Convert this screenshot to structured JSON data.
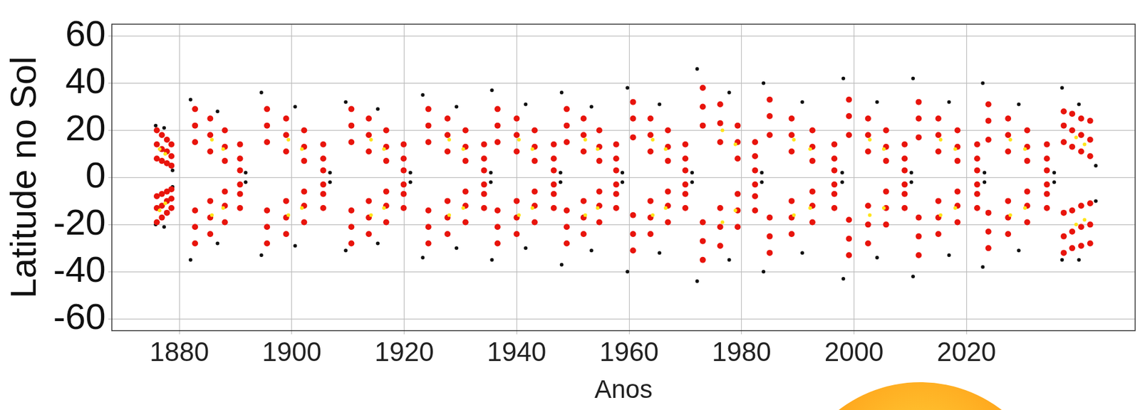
{
  "chart_data": {
    "type": "scatter",
    "xlabel": "Anos",
    "ylabel": "Latitude no Sol",
    "xlim": [
      1868,
      2050
    ],
    "ylim": [
      -65,
      65
    ],
    "xticks": [
      1880,
      1900,
      1920,
      1940,
      1960,
      1980,
      2000,
      2020
    ],
    "yticks": [
      -60,
      -40,
      -20,
      0,
      20,
      40,
      60
    ],
    "grid": true,
    "marker": "circle",
    "series": [
      {
        "color": "#111111",
        "x": [
          1875.8,
          1878.8,
          1875.8,
          1878.8,
          1877.3,
          1877.3,
          1882,
          1891.8,
          1882,
          1891.8,
          1886.8,
          1886.8,
          1894.6,
          1906.8,
          1894.6,
          1906.8,
          1900.6,
          1900.6,
          1909.6,
          1921.1,
          1909.6,
          1921.1,
          1915.3,
          1915.3,
          1923.3,
          1935.4,
          1923.3,
          1935.4,
          1929.3,
          1929.3,
          1935.6,
          1947.8,
          1935.6,
          1947.8,
          1941.6,
          1941.6,
          1948,
          1958.8,
          1948,
          1958.8,
          1953.3,
          1953.3,
          1959.7,
          1971.2,
          1959.7,
          1971.2,
          1965.4,
          1965.4,
          1972.1,
          1983.6,
          1972.1,
          1983.6,
          1977.8,
          1977.8,
          1983.9,
          1997.9,
          1983.9,
          1997.9,
          1990.8,
          1990.8,
          1998.1,
          2010.2,
          1998.1,
          2010.2,
          2004.1,
          2004.1,
          2010.5,
          2023.2,
          2010.5,
          2023.2,
          2016.9,
          2016.9,
          2022.9,
          2035.6,
          2022.9,
          2035.6,
          2029.3,
          2029.3,
          2037,
          2043,
          2037,
          2043,
          2040,
          2040
        ],
        "values": [
          22,
          3,
          -20,
          -4,
          21,
          -21,
          33,
          2,
          -35,
          -2,
          28,
          -28,
          36,
          2,
          -33,
          -2,
          30,
          -29,
          32,
          2,
          -31,
          -2,
          29,
          -28,
          35,
          2,
          -34,
          -2,
          30,
          -30,
          37,
          2,
          -35,
          -2,
          31,
          -30,
          36,
          2,
          -37,
          -2,
          30,
          -31,
          38,
          2,
          -40,
          -2,
          31,
          -32,
          46,
          2,
          -44,
          -2,
          36,
          -35,
          40,
          2,
          -40,
          -2,
          32,
          -32,
          42,
          2,
          -43,
          -2,
          32,
          -34,
          42,
          2,
          -42,
          -2,
          32,
          -33,
          40,
          2,
          -38,
          -2,
          31,
          -31,
          38,
          5,
          -35,
          -10,
          31,
          -35
        ]
      },
      {
        "color": "#e8140c",
        "x": [
          1876,
          1876,
          1876,
          1876.9,
          1876.9,
          1876.9,
          1877.8,
          1877.8,
          1877.8,
          1878.6,
          1878.6,
          1878.6,
          1876,
          1876,
          1876,
          1876.9,
          1876.9,
          1876.9,
          1877.8,
          1877.8,
          1877.8,
          1878.6,
          1878.6,
          1878.6,
          1882.8,
          1882.8,
          1882.8,
          1885.5,
          1885.5,
          1885.5,
          1888.1,
          1888.1,
          1888.1,
          1890.8,
          1890.8,
          1890.8,
          1882.8,
          1882.8,
          1882.8,
          1885.5,
          1885.5,
          1885.5,
          1888.1,
          1888.1,
          1888.1,
          1890.8,
          1890.8,
          1890.8,
          1895.6,
          1895.6,
          1895.6,
          1899,
          1899,
          1899,
          1902.2,
          1902.2,
          1902.2,
          1905.6,
          1905.6,
          1905.6,
          1895.6,
          1895.6,
          1895.6,
          1899,
          1899,
          1899,
          1902.2,
          1902.2,
          1902.2,
          1905.6,
          1905.6,
          1905.6,
          1910.6,
          1910.6,
          1910.6,
          1913.7,
          1913.7,
          1913.7,
          1916.8,
          1916.8,
          1916.8,
          1919.9,
          1919.9,
          1919.9,
          1910.6,
          1910.6,
          1910.6,
          1913.7,
          1913.7,
          1913.7,
          1916.8,
          1916.8,
          1916.8,
          1919.9,
          1919.9,
          1919.9,
          1924.3,
          1924.3,
          1924.3,
          1927.7,
          1927.7,
          1927.7,
          1930.9,
          1930.9,
          1930.9,
          1934.2,
          1934.2,
          1934.2,
          1924.3,
          1924.3,
          1924.3,
          1927.7,
          1927.7,
          1927.7,
          1930.9,
          1930.9,
          1930.9,
          1934.2,
          1934.2,
          1934.2,
          1936.6,
          1936.6,
          1936.6,
          1940,
          1940,
          1940,
          1943.2,
          1943.2,
          1943.2,
          1946.6,
          1946.6,
          1946.6,
          1936.6,
          1936.6,
          1936.6,
          1940,
          1940,
          1940,
          1943.2,
          1943.2,
          1943.2,
          1946.6,
          1946.6,
          1946.6,
          1948.9,
          1948.9,
          1948.9,
          1951.9,
          1951.9,
          1951.9,
          1954.7,
          1954.7,
          1954.7,
          1957.7,
          1957.7,
          1957.7,
          1948.9,
          1948.9,
          1948.9,
          1951.9,
          1951.9,
          1951.9,
          1954.7,
          1954.7,
          1954.7,
          1957.7,
          1957.7,
          1957.7,
          1960.7,
          1960.7,
          1960.7,
          1963.8,
          1963.8,
          1963.8,
          1966.9,
          1966.9,
          1966.9,
          1970,
          1970,
          1970,
          1960.7,
          1960.7,
          1960.7,
          1963.8,
          1963.8,
          1963.8,
          1966.9,
          1966.9,
          1966.9,
          1970,
          1970,
          1970,
          1973.1,
          1973.1,
          1973.1,
          1976.2,
          1976.2,
          1976.2,
          1979.3,
          1979.3,
          1979.3,
          1982.4,
          1982.4,
          1982.4,
          1973.1,
          1973.1,
          1973.1,
          1976.2,
          1976.2,
          1976.2,
          1979.3,
          1979.3,
          1979.3,
          1982.4,
          1982.4,
          1982.4,
          1985,
          1985,
          1985,
          1988.9,
          1988.9,
          1988.9,
          1992.6,
          1992.6,
          1992.6,
          1996.5,
          1996.5,
          1996.5,
          1985,
          1985,
          1985,
          1988.9,
          1988.9,
          1988.9,
          1992.6,
          1992.6,
          1992.6,
          1996.5,
          1996.5,
          1996.5,
          1999.1,
          1999.1,
          1999.1,
          2002.5,
          2002.5,
          2002.5,
          2005.7,
          2005.7,
          2005.7,
          2009,
          2009,
          2009,
          1999.1,
          1999.1,
          1999.1,
          2002.5,
          2002.5,
          2002.5,
          2005.7,
          2005.7,
          2005.7,
          2009,
          2009,
          2009,
          2011.5,
          2011.5,
          2011.5,
          2015,
          2015,
          2015,
          2018.4,
          2018.4,
          2018.4,
          2021.9,
          2021.9,
          2021.9,
          2011.5,
          2011.5,
          2011.5,
          2015,
          2015,
          2015,
          2018.4,
          2018.4,
          2018.4,
          2021.9,
          2021.9,
          2021.9,
          2023.9,
          2023.9,
          2023.9,
          2027.4,
          2027.4,
          2027.4,
          2030.8,
          2030.8,
          2030.8,
          2034.3,
          2034.3,
          2034.3,
          2023.9,
          2023.9,
          2023.9,
          2027.4,
          2027.4,
          2027.4,
          2030.8,
          2030.8,
          2030.8,
          2034.3,
          2034.3,
          2034.3,
          2037.3,
          2037.3,
          2037.3,
          2038.8,
          2038.8,
          2038.8,
          2040.4,
          2040.4,
          2040.4,
          2042,
          2042,
          2042,
          2037.3,
          2037.3,
          2037.3,
          2038.8,
          2038.8,
          2038.8,
          2040.4,
          2040.4,
          2040.4,
          2042,
          2042,
          2042
        ],
        "values": [
          20,
          14,
          8,
          18,
          12,
          7,
          16,
          11,
          6,
          14,
          9,
          5,
          -19,
          -13,
          -8,
          -17,
          -12,
          -7,
          -15,
          -10,
          -6,
          -13,
          -9,
          -5,
          29,
          22,
          15,
          25,
          18,
          11,
          20,
          13,
          7,
          14,
          8,
          3,
          -28,
          -21,
          -14,
          -24,
          -17,
          -10,
          -19,
          -12,
          -6,
          -13,
          -7,
          -3,
          29,
          22,
          15,
          25,
          18,
          11,
          20,
          13,
          7,
          14,
          8,
          3,
          -28,
          -21,
          -14,
          -24,
          -17,
          -10,
          -19,
          -12,
          -6,
          -13,
          -7,
          -3,
          29,
          22,
          15,
          25,
          18,
          11,
          20,
          13,
          7,
          14,
          8,
          3,
          -28,
          -21,
          -14,
          -24,
          -17,
          -10,
          -19,
          -12,
          -6,
          -13,
          -7,
          -3,
          29,
          22,
          15,
          25,
          18,
          11,
          20,
          13,
          7,
          14,
          8,
          3,
          -28,
          -21,
          -14,
          -24,
          -17,
          -10,
          -19,
          -12,
          -6,
          -13,
          -7,
          -3,
          29,
          22,
          15,
          25,
          18,
          11,
          20,
          13,
          7,
          14,
          8,
          3,
          -28,
          -21,
          -14,
          -24,
          -17,
          -10,
          -19,
          -12,
          -6,
          -13,
          -7,
          -3,
          29,
          22,
          15,
          25,
          18,
          11,
          20,
          13,
          7,
          14,
          8,
          3,
          -28,
          -21,
          -14,
          -24,
          -17,
          -10,
          -19,
          -12,
          -6,
          -13,
          -7,
          -3,
          32,
          25,
          17,
          25,
          18,
          11,
          20,
          13,
          7,
          14,
          8,
          3,
          -31,
          -24,
          -16,
          -24,
          -17,
          -10,
          -19,
          -12,
          -6,
          -13,
          -7,
          -3,
          38,
          30,
          22,
          31,
          23,
          15,
          22,
          15,
          8,
          15,
          9,
          3,
          -35,
          -27,
          -19,
          -29,
          -21,
          -13,
          -21,
          -14,
          -7,
          -14,
          -8,
          -3,
          33,
          26,
          18,
          25,
          18,
          11,
          20,
          13,
          7,
          14,
          8,
          3,
          -32,
          -25,
          -17,
          -24,
          -17,
          -10,
          -19,
          -12,
          -6,
          -13,
          -7,
          -3,
          33,
          26,
          18,
          25,
          18,
          11,
          20,
          13,
          7,
          14,
          8,
          3,
          -33,
          -26,
          -18,
          -28,
          -20,
          -12,
          -20,
          -13,
          -6,
          -13,
          -7,
          -3,
          32,
          25,
          17,
          25,
          18,
          11,
          20,
          13,
          7,
          14,
          8,
          3,
          -33,
          -25,
          -17,
          -24,
          -17,
          -10,
          -19,
          -12,
          -6,
          -13,
          -7,
          -3,
          31,
          24,
          16,
          25,
          18,
          11,
          20,
          13,
          7,
          14,
          8,
          3,
          -30,
          -23,
          -15,
          -24,
          -17,
          -10,
          -19,
          -12,
          -6,
          -13,
          -7,
          -3,
          28,
          22,
          15,
          27,
          20,
          13,
          25,
          18,
          11,
          24,
          16,
          9,
          -32,
          -25,
          -15,
          -30,
          -23,
          -14,
          -29,
          -21,
          -12,
          -28,
          -20,
          -11
        ]
      },
      {
        "color": "#ffe41a",
        "x": [
          1876.5,
          1877.5,
          1876.5,
          1877.5,
          1885.8,
          1887.8,
          1885.8,
          1887.8,
          1899.4,
          1901.8,
          1899.4,
          1901.8,
          1914.1,
          1916.4,
          1914.1,
          1916.4,
          1928,
          1930.5,
          1928,
          1930.5,
          1940.4,
          1942.8,
          1940.4,
          1942.8,
          1952.2,
          1954.4,
          1952.2,
          1954.4,
          1964.2,
          1966.5,
          1964.2,
          1966.5,
          1976.6,
          1978.9,
          1976.6,
          1978.9,
          1989.3,
          1992.2,
          1989.3,
          1992.2,
          2002.8,
          2005.3,
          2002.8,
          2005.3,
          2015.4,
          2018,
          2015.4,
          2018,
          2027.8,
          2030.4,
          2027.8,
          2030.4,
          2039.5,
          2041,
          2039.5,
          2041
        ],
        "values": [
          12,
          10,
          -14,
          -11,
          16,
          12,
          -16,
          -13,
          16,
          12,
          -16,
          -13,
          16,
          12,
          -16,
          -13,
          16,
          12,
          -16,
          -13,
          16,
          12,
          -16,
          -13,
          16,
          12,
          -16,
          -13,
          16,
          12,
          -16,
          -13,
          20,
          14,
          -19,
          -14,
          16,
          12,
          -16,
          -13,
          16,
          12,
          -16,
          -13,
          16,
          12,
          -16,
          -13,
          16,
          12,
          -16,
          -13,
          17,
          14,
          -20,
          -18
        ]
      }
    ]
  }
}
